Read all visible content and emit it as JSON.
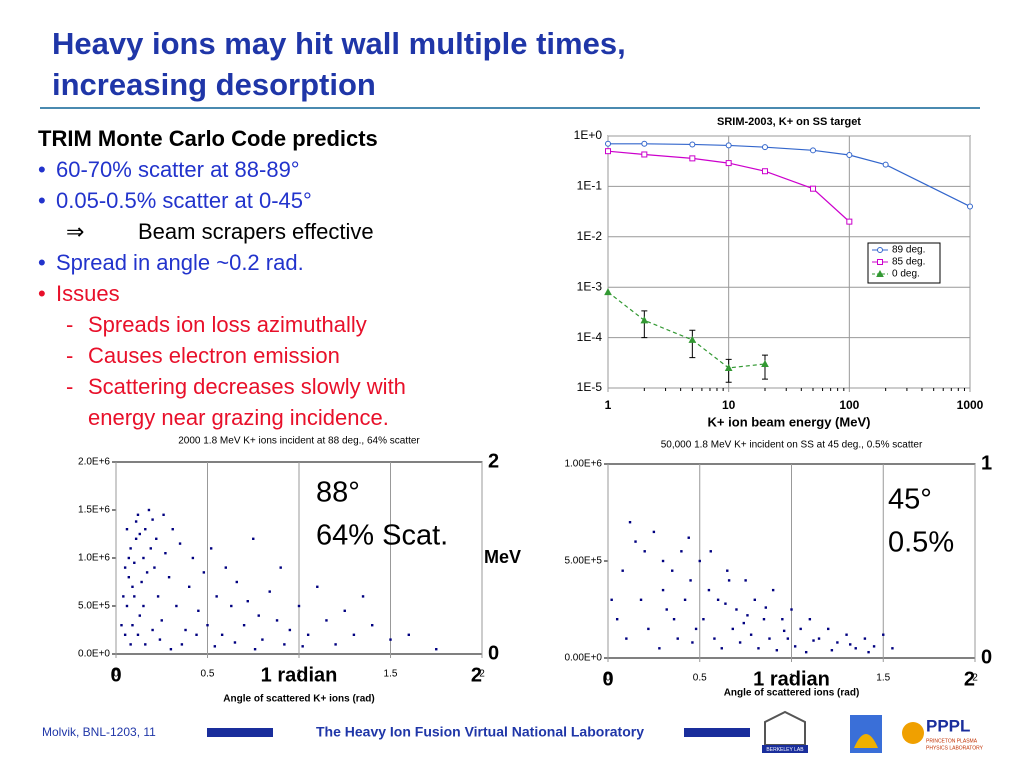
{
  "title": [
    "Heavy ions may hit wall multiple times,",
    "increasing desorption"
  ],
  "heading": "TRIM Monte Carlo Code predicts",
  "bullets": [
    {
      "marker": "•",
      "text": "60-70% scatter at 88-89°",
      "color": "#2233cc",
      "level": 0
    },
    {
      "marker": "•",
      "text": "0.05-0.5% scatter at 0-45°",
      "color": "#2233cc",
      "level": 0
    },
    {
      "marker": "⇒",
      "text": "Beam scrapers effective",
      "color": "#000000",
      "level": 1
    },
    {
      "marker": "•",
      "text": "Spread in angle ~0.2 rad.",
      "color": "#2233cc",
      "level": 0
    },
    {
      "marker": "•",
      "text": "Issues",
      "color": "#e8102a",
      "level": 0
    },
    {
      "marker": "-",
      "text": "Spreads ion loss azimuthally",
      "color": "#e8102a",
      "level": 1
    },
    {
      "marker": "-",
      "text": "Causes electron emission",
      "color": "#e8102a",
      "level": 1
    },
    {
      "marker": "-",
      "text": "Scattering decreases slowly with",
      "color": "#e8102a",
      "level": 1
    },
    {
      "text": "energy near grazing incidence.",
      "color": "#e8102a",
      "level": 1
    }
  ],
  "chart_data": [
    {
      "type": "line",
      "title": "SRIM-2003, K+ on SS target",
      "xlabel": "K+ ion beam energy (MeV)",
      "x": [
        1,
        2,
        5,
        10,
        20,
        50,
        100,
        200,
        1000
      ],
      "xlim": [
        1,
        1000
      ],
      "xticks": [
        1,
        10,
        100,
        1000
      ],
      "log_x": true,
      "ylim": [
        1e-05,
        1
      ],
      "log_y": true,
      "yticks": [
        {
          "value": 1e-05,
          "label": "1E-5"
        },
        {
          "value": 0.0001,
          "label": "1E-4"
        },
        {
          "value": 0.001,
          "label": "1E-3"
        },
        {
          "value": 0.01,
          "label": "1E-2"
        },
        {
          "value": 0.1,
          "label": "1E-1"
        },
        {
          "value": 1,
          "label": "1E+0"
        }
      ],
      "grid": true,
      "legend": "center right",
      "series": [
        {
          "name": "89 deg.",
          "color": "#3366cc",
          "marker": "circle",
          "dashed": false,
          "values": [
            0.7,
            0.7,
            0.68,
            0.65,
            0.6,
            0.52,
            0.42,
            0.27,
            0.04
          ]
        },
        {
          "name": "85 deg.",
          "color": "#cc00cc",
          "marker": "square",
          "dashed": false,
          "values": [
            0.5,
            0.43,
            0.36,
            0.29,
            0.2,
            0.09,
            0.02,
            null,
            null
          ]
        },
        {
          "name": "0 deg.",
          "color": "#339933",
          "marker": "triangle",
          "dashed": true,
          "values": [
            0.0008,
            0.00022,
            9e-05,
            2.5e-05,
            3e-05,
            null,
            null,
            null,
            null
          ],
          "errors": [
            null,
            0.00012,
            5e-05,
            1.2e-05,
            1.5e-05,
            null,
            null,
            null,
            null
          ]
        }
      ]
    },
    {
      "type": "scatter",
      "title": "2000 1.8 MeV K+ ions incident at 88 deg., 64% scatter",
      "xlabel": "Angle of scattered K+ ions (rad)",
      "xlim": [
        0,
        2
      ],
      "xticks": [
        0,
        0.5,
        1,
        1.5,
        2
      ],
      "x2ticks": [
        {
          "value": 0,
          "label": "0"
        },
        {
          "value": 1,
          "label": "1 radian"
        },
        {
          "value": 2,
          "label": "2"
        }
      ],
      "ylim": [
        0,
        2000000
      ],
      "yticks": [
        {
          "value": 0,
          "label": "0.0E+0"
        },
        {
          "value": 500000,
          "label": "5.0E+5"
        },
        {
          "value": 1000000,
          "label": "1.0E+6"
        },
        {
          "value": 1500000,
          "label": "1.5E+6"
        },
        {
          "value": 2000000,
          "label": "2.0E+6"
        }
      ],
      "y2lim": [
        0,
        2
      ],
      "y2ticks": [
        0,
        2
      ],
      "y2label": "MeV",
      "xgrid": true,
      "color": "#000080",
      "annotations": [
        "88°",
        "64% Scat."
      ],
      "series": [
        {
          "x": [
            0.05,
            0.06,
            0.07,
            0.08,
            0.06,
            0.09,
            0.1,
            0.1,
            0.11,
            0.12,
            0.08,
            0.13,
            0.14,
            0.15,
            0.16,
            0.18,
            0.2,
            0.22,
            0.07,
            0.09,
            0.12,
            0.15,
            0.17,
            0.19,
            0.21,
            0.23,
            0.25,
            0.27,
            0.29,
            0.31,
            0.05,
            0.04,
            0.03,
            0.11,
            0.13,
            0.26,
            0.33,
            0.35,
            0.38,
            0.4,
            0.42,
            0.45,
            0.48,
            0.5,
            0.52,
            0.55,
            0.58,
            0.6,
            0.63,
            0.66,
            0.7,
            0.72,
            0.75,
            0.78,
            0.8,
            0.84,
            0.88,
            0.9,
            0.95,
            1.0,
            1.05,
            1.1,
            1.15,
            1.2,
            1.25,
            1.3,
            1.35,
            1.4,
            1.5,
            1.6,
            1.75,
            0.16,
            0.2,
            0.24,
            0.3,
            0.36,
            0.44,
            0.54,
            0.65,
            0.76,
            0.92,
            1.02
          ],
          "values": [
            200000.0,
            500000.0,
            800000.0,
            1100000.0,
            1300000.0,
            300000.0,
            600000.0,
            950000.0,
            1200000.0,
            1450000.0,
            100000.0,
            400000.0,
            750000.0,
            1000000.0,
            1300000.0,
            1500000.0,
            1400000.0,
            1200000.0,
            1000000.0,
            700000.0,
            200000.0,
            500000.0,
            850000.0,
            1100000.0,
            900000.0,
            600000.0,
            350000.0,
            1050000.0,
            800000.0,
            1300000.0,
            900000.0,
            600000.0,
            300000.0,
            1380000.0,
            1250000.0,
            1450000.0,
            500000.0,
            1150000.0,
            250000.0,
            700000.0,
            1000000.0,
            450000.0,
            850000.0,
            300000.0,
            1100000.0,
            600000.0,
            200000.0,
            900000.0,
            500000.0,
            750000.0,
            300000.0,
            550000.0,
            1200000.0,
            400000.0,
            150000.0,
            650000.0,
            350000.0,
            900000.0,
            250000.0,
            500000.0,
            200000.0,
            700000.0,
            350000.0,
            100000.0,
            450000.0,
            200000.0,
            600000.0,
            300000.0,
            150000.0,
            200000.0,
            50000.0,
            100000.0,
            250000.0,
            150000.0,
            50000.0,
            100000.0,
            200000.0,
            80000.0,
            120000.0,
            50000.0,
            100000.0,
            80000.0
          ]
        }
      ]
    },
    {
      "type": "scatter",
      "title": "50,000 1.8 MeV K+ incident on SS at 45 deg., 0.5% scatter",
      "xlabel": "Angle of scattered ions (rad)",
      "xlim": [
        0,
        2
      ],
      "xticks": [
        0,
        0.5,
        1,
        1.5,
        2
      ],
      "x2ticks": [
        {
          "value": 0,
          "label": "0"
        },
        {
          "value": 1,
          "label": "1 radian"
        },
        {
          "value": 2,
          "label": "2"
        }
      ],
      "ylim": [
        0,
        1000000
      ],
      "yticks": [
        {
          "value": 0,
          "label": "0.00E+0"
        },
        {
          "value": 500000,
          "label": "5.00E+5"
        },
        {
          "value": 1000000,
          "label": "1.00E+6"
        }
      ],
      "y2lim": [
        0,
        1
      ],
      "y2ticks": [
        0,
        1
      ],
      "xgrid": true,
      "color": "#000080",
      "annotations": [
        "45°",
        "0.5%"
      ],
      "series": [
        {
          "x": [
            0.12,
            0.15,
            0.2,
            0.25,
            0.3,
            0.35,
            0.4,
            0.45,
            0.5,
            0.55,
            0.6,
            0.65,
            0.7,
            0.75,
            0.8,
            0.85,
            0.9,
            0.95,
            1.0,
            1.05,
            1.1,
            1.15,
            1.2,
            1.25,
            1.3,
            1.35,
            1.4,
            1.45,
            1.5,
            1.55,
            0.02,
            0.05,
            0.08,
            0.1,
            0.18,
            0.22,
            0.28,
            0.32,
            0.38,
            0.42,
            0.48,
            0.52,
            0.58,
            0.62,
            0.68,
            0.72,
            0.78,
            0.82,
            0.88,
            0.92,
            0.98,
            1.02,
            1.08,
            0.44,
            0.56,
            0.64,
            0.74,
            0.86,
            0.96,
            1.12,
            1.22,
            1.32,
            1.42,
            0.3,
            0.36,
            0.46,
            0.66,
            0.76
          ],
          "values": [
            700000.0,
            600000.0,
            550000.0,
            650000.0,
            500000.0,
            450000.0,
            550000.0,
            400000.0,
            500000.0,
            350000.0,
            300000.0,
            450000.0,
            250000.0,
            400000.0,
            300000.0,
            200000.0,
            350000.0,
            200000.0,
            250000.0,
            150000.0,
            200000.0,
            100000.0,
            150000.0,
            80000.0,
            120000.0,
            50000.0,
            100000.0,
            60000.0,
            120000.0,
            50000.0,
            300000.0,
            200000.0,
            450000.0,
            100000.0,
            300000.0,
            150000.0,
            50000.0,
            250000.0,
            100000.0,
            300000.0,
            150000.0,
            200000.0,
            100000.0,
            50000.0,
            150000.0,
            80000.0,
            120000.0,
            50000.0,
            100000.0,
            40000.0,
            100000.0,
            60000.0,
            30000.0,
            620000.0,
            550000.0,
            280000.0,
            180000.0,
            260000.0,
            140000.0,
            90000.0,
            40000.0,
            70000.0,
            30000.0,
            350000.0,
            200000.0,
            80000.0,
            400000.0,
            220000.0
          ]
        }
      ]
    }
  ],
  "footer": {
    "left": "Molvik,  BNL-1203, 11",
    "center": "The Heavy Ion Fusion Virtual National Laboratory",
    "logo1": "BERKELEY LAB",
    "logo3": "PPPL",
    "logo3_sub": [
      "PRINCETON PLASMA",
      "PHYSICS LABORATORY"
    ]
  }
}
